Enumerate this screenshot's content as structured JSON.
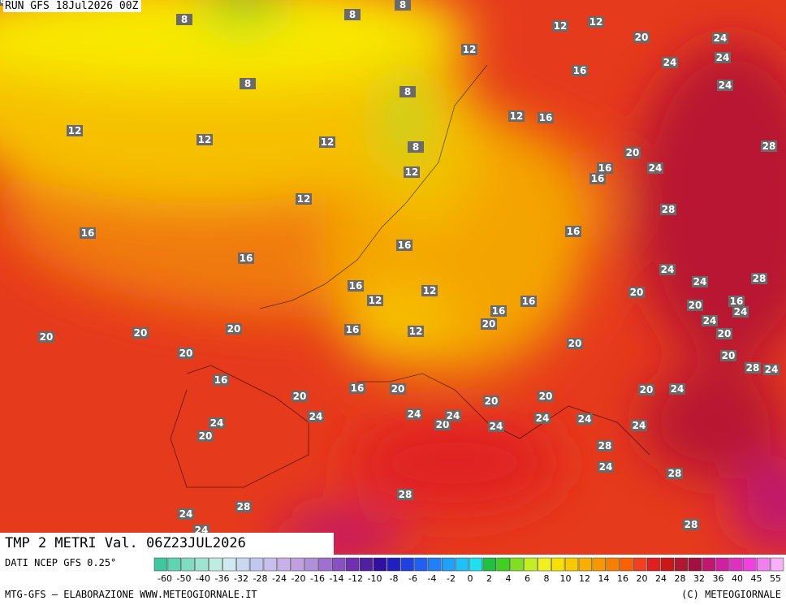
{
  "header": {
    "run": "RUN GFS 18Jul2026 00Z"
  },
  "title": "TMP 2 METRI Val. 06Z23JUL2026",
  "source": "DATI NCEP GFS 0.25°",
  "colorbar": {
    "colors": [
      "#3fc8a0",
      "#5fd4b0",
      "#7fdcc0",
      "#9fe4d0",
      "#bfece0",
      "#d0e8f0",
      "#c8d8f0",
      "#c0c8f0",
      "#c8c0ec",
      "#c8b0e8",
      "#c0a0e0",
      "#b090d8",
      "#a070d0",
      "#8850c0",
      "#7030b0",
      "#5020a0",
      "#3010a0",
      "#2020c0",
      "#2040e0",
      "#2060f0",
      "#2080f8",
      "#20a0f8",
      "#20c0f8",
      "#20e0f0",
      "#20c040",
      "#40d020",
      "#80e020",
      "#c0f020",
      "#f0f020",
      "#f8e000",
      "#f8c800",
      "#f8b000",
      "#f89800",
      "#f88000",
      "#f86000",
      "#f04020",
      "#e02020",
      "#c81818",
      "#b01830",
      "#a01040",
      "#c01870",
      "#d020a0",
      "#e030c0",
      "#f040e0",
      "#f080f0",
      "#f8b0f8"
    ],
    "labels": [
      -60,
      -50,
      -40,
      -36,
      -32,
      -28,
      -24,
      -20,
      -16,
      -14,
      -12,
      -10,
      -8,
      -6,
      -4,
      -2,
      0,
      2,
      4,
      6,
      8,
      10,
      12,
      14,
      16,
      20,
      24,
      28,
      32,
      36,
      40,
      45,
      55
    ]
  },
  "footer": {
    "left": "MTG-GFS — ELABORAZIONE WWW.METEOGIORNALE.IT",
    "right": "(C) METEOGIORNALE"
  },
  "map": {
    "labels": [
      8,
      8,
      8,
      8,
      8,
      8,
      12,
      12,
      12,
      12,
      12,
      12,
      12,
      12,
      12,
      12,
      12,
      12,
      16,
      16,
      16,
      16,
      16,
      16,
      16,
      16,
      16,
      16,
      16,
      16,
      16,
      16,
      16,
      20,
      20,
      20,
      20,
      20,
      20,
      20,
      20,
      20,
      20,
      20,
      20,
      20,
      20,
      20,
      20,
      20,
      20,
      20,
      24,
      24,
      24,
      24,
      24,
      24,
      24,
      24,
      24,
      24,
      24,
      24,
      24,
      24,
      24,
      24,
      24,
      24,
      24,
      24,
      24,
      24,
      28,
      28,
      28,
      28,
      28,
      28,
      28,
      28,
      28,
      28
    ]
  }
}
